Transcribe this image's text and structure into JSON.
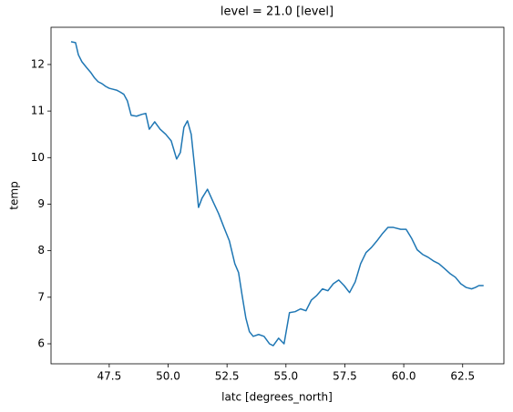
{
  "chart_data": {
    "type": "line",
    "title": "level = 21.0 [level]",
    "x_label": "latc [degrees_north]",
    "y_label": "temp",
    "color": "#1f77b4",
    "grid": false,
    "x": [
      45.88,
      46.07,
      46.19,
      46.34,
      46.53,
      46.73,
      46.88,
      47.03,
      47.19,
      47.35,
      47.5,
      47.65,
      47.81,
      47.96,
      48.12,
      48.27,
      48.43,
      48.66,
      48.89,
      49.05,
      49.2,
      49.43,
      49.66,
      49.9,
      50.13,
      50.36,
      50.52,
      50.67,
      50.82,
      50.98,
      51.13,
      51.29,
      51.44,
      51.67,
      51.91,
      52.14,
      52.37,
      52.6,
      52.83,
      52.99,
      53.14,
      53.3,
      53.45,
      53.61,
      53.84,
      54.07,
      54.3,
      54.46,
      54.69,
      54.92,
      55.15,
      55.39,
      55.62,
      55.85,
      56.08,
      56.31,
      56.55,
      56.78,
      57.01,
      57.24,
      57.47,
      57.7,
      57.94,
      58.17,
      58.4,
      58.63,
      58.86,
      59.1,
      59.33,
      59.56,
      59.87,
      60.1,
      60.33,
      60.57,
      60.8,
      61.03,
      61.26,
      61.49,
      61.72,
      61.96,
      62.19,
      62.42,
      62.65,
      62.88,
      63.04,
      63.19,
      63.39
    ],
    "values": [
      12.49,
      12.47,
      12.21,
      12.06,
      11.94,
      11.82,
      11.71,
      11.63,
      11.59,
      11.53,
      11.49,
      11.47,
      11.45,
      11.41,
      11.36,
      11.22,
      10.91,
      10.89,
      10.93,
      10.95,
      10.61,
      10.77,
      10.61,
      10.5,
      10.36,
      9.97,
      10.11,
      10.65,
      10.79,
      10.5,
      9.77,
      8.93,
      9.13,
      9.32,
      9.05,
      8.8,
      8.5,
      8.21,
      7.72,
      7.53,
      7.04,
      6.55,
      6.26,
      6.16,
      6.2,
      6.16,
      6.0,
      5.96,
      6.12,
      6.0,
      6.67,
      6.69,
      6.75,
      6.71,
      6.94,
      7.04,
      7.18,
      7.14,
      7.29,
      7.37,
      7.25,
      7.1,
      7.33,
      7.72,
      7.96,
      8.07,
      8.21,
      8.37,
      8.5,
      8.5,
      8.46,
      8.46,
      8.27,
      8.02,
      7.92,
      7.86,
      7.78,
      7.72,
      7.62,
      7.51,
      7.43,
      7.29,
      7.21,
      7.18,
      7.21,
      7.25,
      7.25
    ],
    "xlim": [
      45.03,
      64.25
    ],
    "xticks": [
      {
        "value": 47.5,
        "label": "47.5"
      },
      {
        "value": 50,
        "label": "50.0"
      },
      {
        "value": 52.5,
        "label": "52.5"
      },
      {
        "value": 55,
        "label": "55.0"
      },
      {
        "value": 57.5,
        "label": "57.5"
      },
      {
        "value": 60,
        "label": "60.0"
      },
      {
        "value": 62.5,
        "label": "62.5"
      }
    ],
    "ylim": [
      5.57,
      12.8
    ],
    "yticks": [
      6,
      7,
      8,
      9,
      10,
      11,
      12
    ]
  }
}
